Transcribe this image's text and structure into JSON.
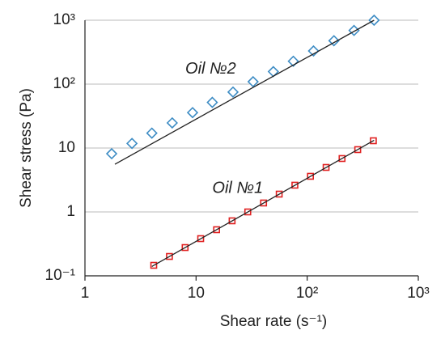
{
  "chart_data": {
    "type": "scatter",
    "xlabel": "Shear rate (s⁻¹)",
    "ylabel": "Shear stress (Pa)",
    "xscale": "log",
    "yscale": "log",
    "grid": "y",
    "xlim": [
      1,
      1000
    ],
    "ylim": [
      0.1,
      1000
    ],
    "xticks": [
      1,
      10,
      {
        "value": 100,
        "label": "10²"
      },
      {
        "value": 1000,
        "label": "10³"
      }
    ],
    "yticks": [
      {
        "value": 0.1,
        "label": "10⁻¹"
      },
      1,
      10,
      {
        "value": 100,
        "label": "10²"
      },
      {
        "value": 1000,
        "label": "10³"
      }
    ],
    "annotations": [
      {
        "text": "Oil №2",
        "x": 8,
        "y": 170
      },
      {
        "text": "Oil №1",
        "x": 14,
        "y": 2.3
      }
    ],
    "series": [
      {
        "marker": "diamond",
        "color": "#3d8cc4",
        "x": [
          1.74,
          2.65,
          4.0,
          6.1,
          9.3,
          14,
          21.5,
          32.6,
          49.6,
          75,
          114,
          174,
          264,
          400
        ],
        "values": [
          8.15,
          11.8,
          17.1,
          24.7,
          35.8,
          51.8,
          75,
          109,
          157,
          228,
          330,
          478,
          692,
          1000
        ]
      },
      {
        "marker": "square",
        "color": "#e02020",
        "x": [
          4.16,
          5.76,
          7.97,
          11.0,
          15.3,
          21.1,
          29.2,
          40.5,
          56.0,
          77.5,
          107,
          148,
          206,
          285,
          394
        ],
        "values": [
          0.146,
          0.201,
          0.277,
          0.382,
          0.527,
          0.726,
          1.0,
          1.38,
          1.9,
          2.62,
          3.61,
          4.97,
          6.85,
          9.44,
          13.0
        ]
      },
      {
        "marker": "none",
        "color": "#222",
        "x": [
          1.86,
          400
        ],
        "values": [
          5.58,
          1000
        ]
      },
      {
        "marker": "none",
        "color": "#222",
        "x": [
          4.0,
          400
        ],
        "values": [
          0.14,
          13.2
        ]
      }
    ]
  }
}
